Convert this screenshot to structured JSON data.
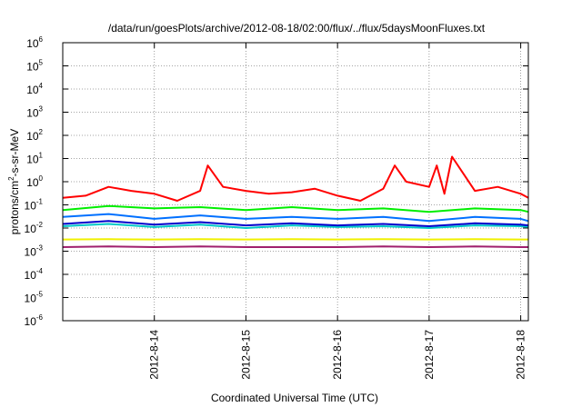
{
  "chart_data": {
    "type": "line",
    "title": "/data/run/goesPlots/archive/2012-08-18/02:00/flux/../flux/5daysMoonFluxes.txt",
    "xlabel": "Coordinated Universal Time (UTC)",
    "ylabel": "protons/cm2-s-sr-MeV",
    "y_scale": "log",
    "ylim": [
      1e-06,
      1000000.0
    ],
    "y_ticks": [
      "10-6",
      "10-5",
      "10-4",
      "10-3",
      "10-2",
      "10-1",
      "100",
      "101",
      "102",
      "103",
      "104",
      "105",
      "106"
    ],
    "xlim": [
      "2012-08-13 00:00",
      "2012-08-18 02:00"
    ],
    "x_ticks": [
      "2012-8-14",
      "2012-8-15",
      "2012-8-16",
      "2012-8-17",
      "2012-8-18"
    ],
    "grid": true,
    "legend": "none",
    "series": [
      {
        "color": "#ff0000",
        "x": [
          "2012-08-13 00:00",
          "2012-08-13 06:00",
          "2012-08-13 12:00",
          "2012-08-13 18:00",
          "2012-08-14 00:00",
          "2012-08-14 06:00",
          "2012-08-14 12:00",
          "2012-08-14 14:00",
          "2012-08-14 18:00",
          "2012-08-15 00:00",
          "2012-08-15 06:00",
          "2012-08-15 12:00",
          "2012-08-15 18:00",
          "2012-08-16 00:00",
          "2012-08-16 06:00",
          "2012-08-16 12:00",
          "2012-08-16 15:00",
          "2012-08-16 18:00",
          "2012-08-17 00:00",
          "2012-08-17 02:00",
          "2012-08-17 04:00",
          "2012-08-17 06:00",
          "2012-08-17 12:00",
          "2012-08-17 18:00",
          "2012-08-18 00:00",
          "2012-08-18 02:00"
        ],
        "y": [
          0.2,
          0.25,
          0.6,
          0.4,
          0.3,
          0.15,
          0.4,
          5,
          0.6,
          0.4,
          0.3,
          0.35,
          0.5,
          0.25,
          0.15,
          0.5,
          5,
          1.0,
          0.6,
          5,
          0.3,
          12,
          0.4,
          0.6,
          0.3,
          0.2
        ]
      },
      {
        "color": "#00ee00",
        "x": [
          "2012-08-13 00:00",
          "2012-08-13 12:00",
          "2012-08-14 00:00",
          "2012-08-14 12:00",
          "2012-08-15 00:00",
          "2012-08-15 12:00",
          "2012-08-16 00:00",
          "2012-08-16 12:00",
          "2012-08-17 00:00",
          "2012-08-17 12:00",
          "2012-08-18 00:00",
          "2012-08-18 02:00"
        ],
        "y": [
          0.06,
          0.09,
          0.07,
          0.08,
          0.06,
          0.08,
          0.06,
          0.07,
          0.05,
          0.07,
          0.06,
          0.05
        ]
      },
      {
        "color": "#00c8c8",
        "x": [
          "2012-08-13 00:00",
          "2012-08-13 12:00",
          "2012-08-14 00:00",
          "2012-08-14 12:00",
          "2012-08-15 00:00",
          "2012-08-15 12:00",
          "2012-08-16 00:00",
          "2012-08-16 12:00",
          "2012-08-17 00:00",
          "2012-08-17 12:00",
          "2012-08-18 00:00",
          "2012-08-18 02:00"
        ],
        "y": [
          0.012,
          0.015,
          0.011,
          0.014,
          0.01,
          0.013,
          0.011,
          0.012,
          0.01,
          0.013,
          0.012,
          0.011
        ]
      },
      {
        "color": "#0070ff",
        "x": [
          "2012-08-13 00:00",
          "2012-08-13 12:00",
          "2012-08-14 00:00",
          "2012-08-14 12:00",
          "2012-08-15 00:00",
          "2012-08-15 12:00",
          "2012-08-16 00:00",
          "2012-08-16 12:00",
          "2012-08-17 00:00",
          "2012-08-17 12:00",
          "2012-08-18 00:00",
          "2012-08-18 02:00"
        ],
        "y": [
          0.03,
          0.04,
          0.025,
          0.035,
          0.025,
          0.03,
          0.025,
          0.03,
          0.02,
          0.03,
          0.025,
          0.02
        ]
      },
      {
        "color": "#0000cc",
        "x": [
          "2012-08-13 00:00",
          "2012-08-13 12:00",
          "2012-08-14 00:00",
          "2012-08-14 12:00",
          "2012-08-15 00:00",
          "2012-08-15 12:00",
          "2012-08-16 00:00",
          "2012-08-16 12:00",
          "2012-08-17 00:00",
          "2012-08-17 12:00",
          "2012-08-18 00:00",
          "2012-08-18 02:00"
        ],
        "y": [
          0.015,
          0.02,
          0.014,
          0.018,
          0.013,
          0.016,
          0.013,
          0.015,
          0.012,
          0.016,
          0.014,
          0.013
        ]
      },
      {
        "color": "#f0f000",
        "x": [
          "2012-08-13 00:00",
          "2012-08-13 12:00",
          "2012-08-14 00:00",
          "2012-08-14 12:00",
          "2012-08-15 00:00",
          "2012-08-15 12:00",
          "2012-08-16 00:00",
          "2012-08-16 12:00",
          "2012-08-17 00:00",
          "2012-08-17 12:00",
          "2012-08-18 00:00",
          "2012-08-18 02:00"
        ],
        "y": [
          0.0032,
          0.0033,
          0.0032,
          0.0033,
          0.0032,
          0.0033,
          0.0032,
          0.0033,
          0.0032,
          0.0033,
          0.0032,
          0.0032
        ]
      },
      {
        "color": "#a0206e",
        "x": [
          "2012-08-13 00:00",
          "2012-08-13 12:00",
          "2012-08-14 00:00",
          "2012-08-14 12:00",
          "2012-08-15 00:00",
          "2012-08-15 12:00",
          "2012-08-16 00:00",
          "2012-08-16 12:00",
          "2012-08-17 00:00",
          "2012-08-17 12:00",
          "2012-08-18 00:00",
          "2012-08-18 02:00"
        ],
        "y": [
          0.0015,
          0.0016,
          0.0015,
          0.0016,
          0.0015,
          0.0015,
          0.0015,
          0.0016,
          0.0015,
          0.0016,
          0.0015,
          0.0015
        ]
      }
    ]
  }
}
